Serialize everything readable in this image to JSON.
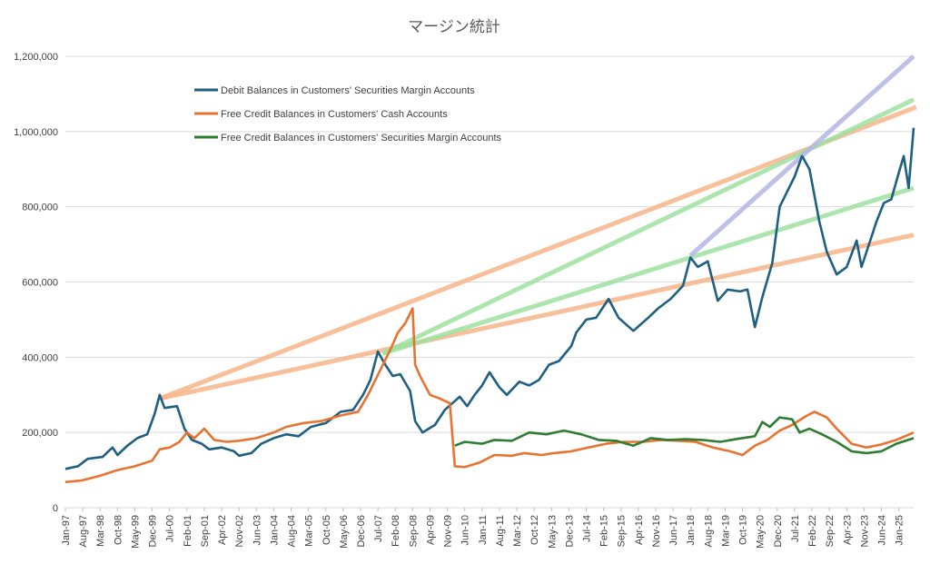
{
  "chart_data": {
    "type": "line",
    "title": "マージン統計",
    "xlabel": "",
    "ylabel": "",
    "ylim": [
      0,
      1200000
    ],
    "y_ticks": [
      "0",
      "200,000",
      "400,000",
      "600,000",
      "800,000",
      "1,000,000",
      "1,200,000"
    ],
    "y_tick_values": [
      0,
      200000,
      400000,
      600000,
      800000,
      1000000,
      1200000
    ],
    "x_start": "1997-01",
    "x_end": "2025-07",
    "x_ticks": [
      "Jan-97",
      "Aug-97",
      "Mar-98",
      "Oct-98",
      "May-99",
      "Dec-99",
      "Jul-00",
      "Feb-01",
      "Sep-01",
      "Apr-02",
      "Nov-02",
      "Jun-03",
      "Jan-04",
      "Aug-04",
      "Mar-05",
      "Oct-05",
      "May-06",
      "Dec-06",
      "Jul-07",
      "Feb-08",
      "Sep-08",
      "Apr-09",
      "Nov-09",
      "Jun-10",
      "Jan-11",
      "Aug-11",
      "Mar-12",
      "Oct-12",
      "May-13",
      "Dec-13",
      "Jul-14",
      "Feb-15",
      "Sep-15",
      "Apr-16",
      "Nov-16",
      "Jun-17",
      "Jan-18",
      "Aug-18",
      "Mar-19",
      "Oct-19",
      "May-20",
      "Dec-20",
      "Jul-21",
      "Feb-22",
      "Sep-22",
      "Apr-23",
      "Nov-23",
      "Jun-24",
      "Jan-25"
    ],
    "grid": true,
    "legend_position": "top-left",
    "series": [
      {
        "name": "Debit Balances in Customers' Securities Margin Accounts",
        "color": "#1f5f82",
        "points": [
          [
            "1997-01",
            103000
          ],
          [
            "1997-06",
            110000
          ],
          [
            "1997-10",
            130000
          ],
          [
            "1998-04",
            135000
          ],
          [
            "1998-08",
            160000
          ],
          [
            "1998-10",
            140000
          ],
          [
            "1999-02",
            165000
          ],
          [
            "1999-06",
            185000
          ],
          [
            "1999-10",
            195000
          ],
          [
            "2000-01",
            250000
          ],
          [
            "2000-03",
            300000
          ],
          [
            "2000-05",
            265000
          ],
          [
            "2000-10",
            270000
          ],
          [
            "2001-01",
            210000
          ],
          [
            "2001-04",
            180000
          ],
          [
            "2001-08",
            170000
          ],
          [
            "2001-11",
            155000
          ],
          [
            "2002-04",
            160000
          ],
          [
            "2002-09",
            150000
          ],
          [
            "2002-11",
            138000
          ],
          [
            "2003-04",
            145000
          ],
          [
            "2003-08",
            170000
          ],
          [
            "2004-01",
            185000
          ],
          [
            "2004-06",
            195000
          ],
          [
            "2004-11",
            190000
          ],
          [
            "2005-04",
            215000
          ],
          [
            "2005-10",
            225000
          ],
          [
            "2006-04",
            255000
          ],
          [
            "2006-09",
            260000
          ],
          [
            "2007-01",
            300000
          ],
          [
            "2007-04",
            340000
          ],
          [
            "2007-07",
            415000
          ],
          [
            "2007-10",
            380000
          ],
          [
            "2008-01",
            350000
          ],
          [
            "2008-04",
            355000
          ],
          [
            "2008-08",
            310000
          ],
          [
            "2008-10",
            230000
          ],
          [
            "2009-01",
            200000
          ],
          [
            "2009-06",
            220000
          ],
          [
            "2009-10",
            260000
          ],
          [
            "2010-04",
            295000
          ],
          [
            "2010-07",
            270000
          ],
          [
            "2010-10",
            300000
          ],
          [
            "2011-01",
            325000
          ],
          [
            "2011-04",
            360000
          ],
          [
            "2011-08",
            320000
          ],
          [
            "2011-11",
            300000
          ],
          [
            "2012-04",
            335000
          ],
          [
            "2012-08",
            325000
          ],
          [
            "2012-12",
            340000
          ],
          [
            "2013-04",
            380000
          ],
          [
            "2013-08",
            390000
          ],
          [
            "2014-01",
            430000
          ],
          [
            "2014-03",
            466000
          ],
          [
            "2014-07",
            500000
          ],
          [
            "2014-11",
            505000
          ],
          [
            "2015-04",
            555000
          ],
          [
            "2015-08",
            505000
          ],
          [
            "2016-02",
            470000
          ],
          [
            "2016-08",
            505000
          ],
          [
            "2016-12",
            530000
          ],
          [
            "2017-05",
            555000
          ],
          [
            "2017-10",
            590000
          ],
          [
            "2018-01",
            665000
          ],
          [
            "2018-04",
            640000
          ],
          [
            "2018-08",
            655000
          ],
          [
            "2018-12",
            550000
          ],
          [
            "2019-04",
            580000
          ],
          [
            "2019-09",
            575000
          ],
          [
            "2019-12",
            580000
          ],
          [
            "2020-03",
            480000
          ],
          [
            "2020-06",
            560000
          ],
          [
            "2020-10",
            650000
          ],
          [
            "2021-01",
            800000
          ],
          [
            "2021-04",
            840000
          ],
          [
            "2021-07",
            880000
          ],
          [
            "2021-10",
            935000
          ],
          [
            "2022-01",
            900000
          ],
          [
            "2022-05",
            760000
          ],
          [
            "2022-08",
            680000
          ],
          [
            "2022-12",
            620000
          ],
          [
            "2023-04",
            640000
          ],
          [
            "2023-08",
            710000
          ],
          [
            "2023-10",
            640000
          ],
          [
            "2024-01",
            700000
          ],
          [
            "2024-04",
            760000
          ],
          [
            "2024-07",
            810000
          ],
          [
            "2024-10",
            820000
          ],
          [
            "2025-01",
            890000
          ],
          [
            "2025-03",
            935000
          ],
          [
            "2025-05",
            850000
          ],
          [
            "2025-07",
            1010000
          ]
        ]
      },
      {
        "name": "Free Credit Balances in Customers' Cash Accounts",
        "color": "#e87330",
        "points": [
          [
            "1997-01",
            68000
          ],
          [
            "1997-08",
            73000
          ],
          [
            "1998-03",
            85000
          ],
          [
            "1998-10",
            100000
          ],
          [
            "1999-05",
            110000
          ],
          [
            "1999-12",
            125000
          ],
          [
            "2000-03",
            155000
          ],
          [
            "2000-07",
            160000
          ],
          [
            "2000-11",
            175000
          ],
          [
            "2001-02",
            200000
          ],
          [
            "2001-05",
            185000
          ],
          [
            "2001-09",
            210000
          ],
          [
            "2002-01",
            180000
          ],
          [
            "2002-06",
            175000
          ],
          [
            "2002-11",
            178000
          ],
          [
            "2003-06",
            185000
          ],
          [
            "2004-01",
            200000
          ],
          [
            "2004-06",
            215000
          ],
          [
            "2005-01",
            225000
          ],
          [
            "2005-08",
            230000
          ],
          [
            "2006-04",
            245000
          ],
          [
            "2006-11",
            255000
          ],
          [
            "2007-03",
            300000
          ],
          [
            "2007-06",
            340000
          ],
          [
            "2007-09",
            380000
          ],
          [
            "2007-12",
            420000
          ],
          [
            "2008-03",
            465000
          ],
          [
            "2008-06",
            490000
          ],
          [
            "2008-09",
            530000
          ],
          [
            "2008-10",
            380000
          ],
          [
            "2008-12",
            350000
          ],
          [
            "2009-04",
            300000
          ],
          [
            "2009-08",
            290000
          ],
          [
            "2009-12",
            278000
          ],
          [
            "2010-02",
            110000
          ],
          [
            "2010-06",
            108000
          ],
          [
            "2010-12",
            120000
          ],
          [
            "2011-06",
            140000
          ],
          [
            "2012-01",
            138000
          ],
          [
            "2012-06",
            145000
          ],
          [
            "2013-01",
            140000
          ],
          [
            "2013-06",
            145000
          ],
          [
            "2014-01",
            150000
          ],
          [
            "2014-08",
            160000
          ],
          [
            "2015-03",
            170000
          ],
          [
            "2015-10",
            175000
          ],
          [
            "2016-06",
            175000
          ],
          [
            "2017-01",
            180000
          ],
          [
            "2017-08",
            178000
          ],
          [
            "2018-03",
            175000
          ],
          [
            "2018-10",
            160000
          ],
          [
            "2019-05",
            150000
          ],
          [
            "2019-10",
            140000
          ],
          [
            "2020-03",
            165000
          ],
          [
            "2020-08",
            180000
          ],
          [
            "2021-01",
            205000
          ],
          [
            "2021-06",
            220000
          ],
          [
            "2021-12",
            245000
          ],
          [
            "2022-03",
            255000
          ],
          [
            "2022-08",
            240000
          ],
          [
            "2022-12",
            210000
          ],
          [
            "2023-06",
            170000
          ],
          [
            "2023-12",
            160000
          ],
          [
            "2024-06",
            168000
          ],
          [
            "2024-12",
            180000
          ],
          [
            "2025-07",
            200000
          ]
        ]
      },
      {
        "name": "Free Credit Balances in Customers' Securities Margin Accounts",
        "color": "#2e7d32",
        "points": [
          [
            "2010-02",
            165000
          ],
          [
            "2010-06",
            175000
          ],
          [
            "2011-01",
            170000
          ],
          [
            "2011-06",
            180000
          ],
          [
            "2012-01",
            178000
          ],
          [
            "2012-08",
            200000
          ],
          [
            "2013-03",
            195000
          ],
          [
            "2013-10",
            205000
          ],
          [
            "2014-05",
            195000
          ],
          [
            "2014-12",
            180000
          ],
          [
            "2015-07",
            178000
          ],
          [
            "2016-02",
            165000
          ],
          [
            "2016-09",
            185000
          ],
          [
            "2017-04",
            180000
          ],
          [
            "2017-11",
            182000
          ],
          [
            "2018-06",
            180000
          ],
          [
            "2019-01",
            175000
          ],
          [
            "2019-08",
            183000
          ],
          [
            "2020-03",
            190000
          ],
          [
            "2020-06",
            228000
          ],
          [
            "2020-09",
            215000
          ],
          [
            "2021-01",
            240000
          ],
          [
            "2021-06",
            235000
          ],
          [
            "2021-09",
            200000
          ],
          [
            "2022-01",
            210000
          ],
          [
            "2022-06",
            195000
          ],
          [
            "2022-12",
            175000
          ],
          [
            "2023-06",
            150000
          ],
          [
            "2023-12",
            145000
          ],
          [
            "2024-06",
            150000
          ],
          [
            "2024-12",
            170000
          ],
          [
            "2025-07",
            185000
          ]
        ]
      }
    ],
    "trendlines": [
      {
        "color": "#f7b58a",
        "from": [
          "2000-03",
          290000
        ],
        "to": [
          "2025-08",
          1065000
        ]
      },
      {
        "color": "#f7b58a",
        "from": [
          "2000-03",
          290000
        ],
        "to": [
          "2025-07",
          725000
        ]
      },
      {
        "color": "#9ee2a0",
        "from": [
          "2007-09",
          410000
        ],
        "to": [
          "2025-07",
          1085000
        ]
      },
      {
        "color": "#9ee2a0",
        "from": [
          "2007-09",
          410000
        ],
        "to": [
          "2025-07",
          850000
        ]
      },
      {
        "color": "#b4b6e6",
        "from": [
          "2018-01",
          670000
        ],
        "to": [
          "2025-07",
          1200000
        ]
      }
    ]
  }
}
